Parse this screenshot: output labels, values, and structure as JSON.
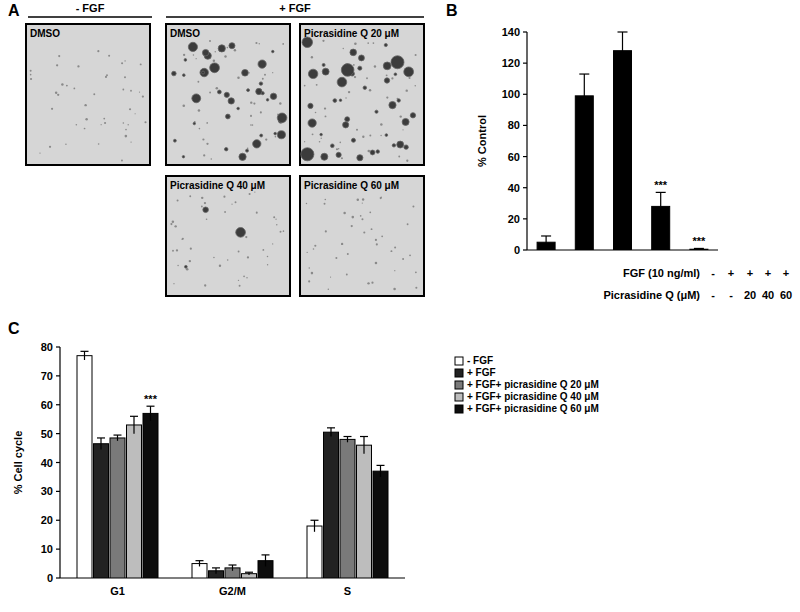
{
  "panel_a": {
    "label": "A",
    "groups": [
      {
        "label": "- FGF"
      },
      {
        "label": "+ FGF"
      }
    ],
    "images": [
      {
        "label": "DMSO"
      },
      {
        "label": "DMSO"
      },
      {
        "label": "Picrasidine Q 20 μM"
      },
      {
        "label": "Picrasidine Q 40 μM"
      },
      {
        "label": "Picrasidine Q 60 μM"
      }
    ]
  },
  "chart_data": [
    {
      "type": "bar",
      "panel": "B",
      "y_label": "% Control",
      "categories": [
        null,
        null,
        null,
        null,
        null
      ],
      "values": [
        5,
        99,
        128,
        28,
        0.5
      ],
      "errors": [
        4,
        14,
        12,
        9,
        0.5
      ],
      "color": "#000000",
      "ylim": [
        0,
        140
      ],
      "yticks": [
        0,
        20,
        40,
        60,
        80,
        100,
        120,
        140
      ],
      "grid": false,
      "x_table": {
        "rows": [
          {
            "label": "FGF (10 ng/ml)",
            "cells": [
              "-",
              "+",
              "+",
              "+",
              "+"
            ]
          },
          {
            "label": "Picrasidine Q (μM)",
            "cells": [
              "-",
              "-",
              "20",
              "40",
              "60"
            ]
          }
        ]
      },
      "annotations": [
        {
          "index": 3,
          "text": "***"
        },
        {
          "index": 4,
          "text": "***"
        }
      ]
    },
    {
      "type": "bar",
      "panel": "C",
      "y_label": "% Cell cycle",
      "categories": [
        "G1",
        "G2/M",
        "S"
      ],
      "series": [
        {
          "name": "- FGF",
          "color": "#ffffff",
          "values": [
            77,
            5,
            18
          ],
          "errors": [
            1.5,
            1,
            2
          ]
        },
        {
          "name": "+ FGF",
          "color": "#222222",
          "values": [
            46.5,
            2.5,
            50.5
          ],
          "errors": [
            2,
            1,
            1.5
          ]
        },
        {
          "name": "+ FGF+ picrasidine Q 20 μM",
          "color": "#7a7a7a",
          "values": [
            48.5,
            3.5,
            48
          ],
          "errors": [
            1,
            1,
            1
          ]
        },
        {
          "name": "+ FGF+ picrasidine Q 40 μM",
          "color": "#bdbdbd",
          "values": [
            53,
            1.5,
            46
          ],
          "errors": [
            3,
            0.5,
            3
          ]
        },
        {
          "name": "+ FGF+ picrasidine Q 60 μM",
          "color": "#0d0d0d",
          "values": [
            57,
            6,
            37
          ],
          "errors": [
            2.5,
            2,
            2
          ]
        }
      ],
      "ylim": [
        0,
        80
      ],
      "yticks": [
        0,
        10,
        20,
        30,
        40,
        50,
        60,
        70,
        80
      ],
      "grid": false,
      "legend": "upper right",
      "annotations": [
        {
          "series": 4,
          "index": 0,
          "text": "***"
        }
      ]
    }
  ]
}
